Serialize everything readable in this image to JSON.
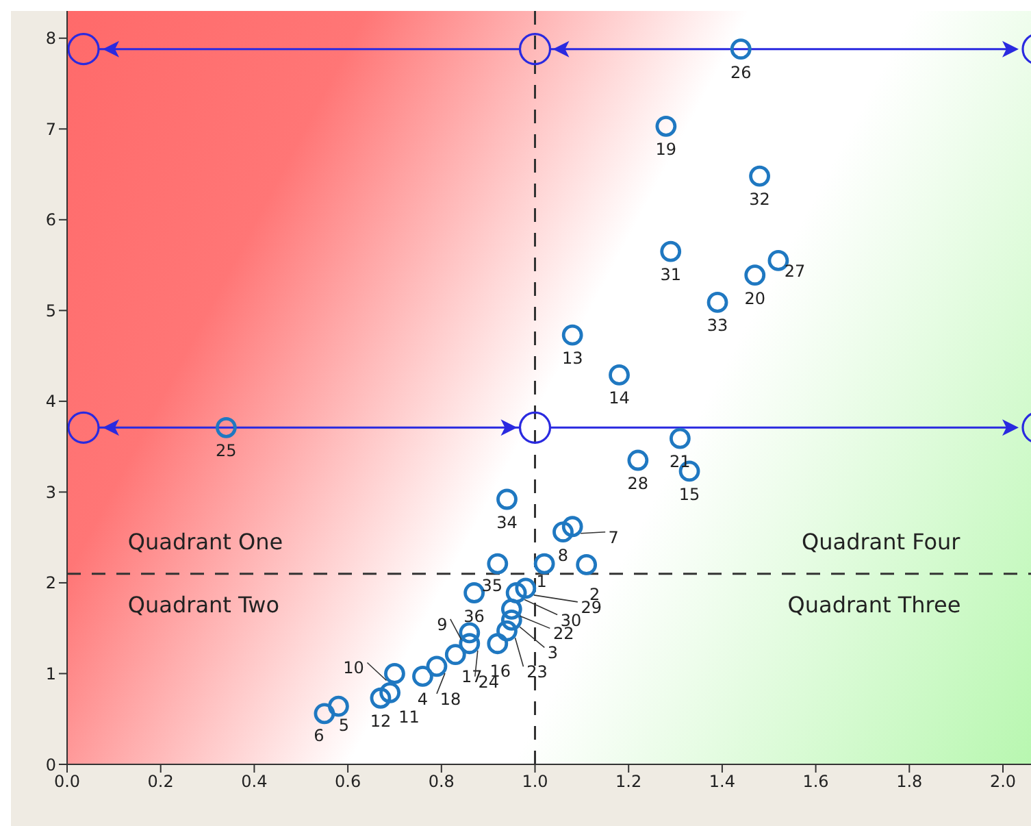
{
  "chart_data": {
    "type": "scatter",
    "x": [
      1.02,
      1.11,
      0.95,
      0.76,
      0.58,
      0.55,
      1.08,
      1.06,
      0.86,
      0.7,
      0.69,
      0.67,
      1.08,
      1.18,
      1.33,
      0.92,
      0.83,
      0.79,
      1.28,
      1.47,
      1.31,
      0.95,
      0.94,
      0.86,
      0.34,
      1.44,
      1.52,
      1.22,
      0.98,
      0.96,
      1.29,
      1.48,
      1.39,
      0.94,
      0.92,
      0.87
    ],
    "values": [
      2.21,
      2.2,
      1.59,
      0.97,
      0.64,
      0.56,
      2.62,
      2.56,
      1.45,
      1.0,
      0.79,
      0.73,
      4.73,
      4.29,
      3.23,
      1.33,
      1.21,
      1.08,
      7.03,
      5.39,
      3.59,
      1.71,
      1.47,
      1.33,
      3.71,
      7.88,
      5.55,
      3.35,
      1.94,
      1.89,
      5.65,
      6.48,
      5.09,
      2.92,
      2.21,
      1.89
    ],
    "color": "#1f78c1",
    "marker": "circle",
    "xlim": [
      0,
      2.06
    ],
    "ylim": [
      0,
      8.3
    ],
    "xticks": [
      {
        "value": 0,
        "label": "0.0"
      },
      {
        "value": 0.2,
        "label": "0.2"
      },
      {
        "value": 0.4,
        "label": "0.4"
      },
      {
        "value": 0.6,
        "label": "0.6"
      },
      {
        "value": 0.8,
        "label": "0.8"
      },
      {
        "value": 1,
        "label": "1.0"
      },
      {
        "value": 1.2,
        "label": "1.2"
      },
      {
        "value": 1.4,
        "label": "1.4"
      },
      {
        "value": 1.6,
        "label": "1.6"
      },
      {
        "value": 1.8,
        "label": "1.8"
      },
      {
        "value": 2,
        "label": "2.0"
      }
    ],
    "yticks": [
      0,
      1,
      2,
      3,
      4,
      5,
      6,
      7,
      8
    ],
    "grid": false,
    "legend": false,
    "ref_lines": [
      {
        "axis": "x",
        "value": 1,
        "color": "#333333",
        "line_style": "dashed"
      },
      {
        "axis": "y",
        "value": 2.1,
        "color": "#333333",
        "line_style": "dashed"
      },
      {
        "axis": "y",
        "value": 7.88,
        "color": "#2a2ae0",
        "line_style": "solid"
      },
      {
        "axis": "y",
        "value": 3.71,
        "color": "#2a2ae0",
        "line_style": "solid"
      }
    ],
    "annotations": [
      {
        "text": "1",
        "x": 1.02,
        "y": 2.21
      },
      {
        "text": "2",
        "x": 1.11,
        "y": 2.2
      },
      {
        "text": "3",
        "x": 0.95,
        "y": 1.59
      },
      {
        "text": "4",
        "x": 0.76,
        "y": 0.97
      },
      {
        "text": "5",
        "x": 0.58,
        "y": 0.64
      },
      {
        "text": "6",
        "x": 0.55,
        "y": 0.56
      },
      {
        "text": "7",
        "x": 1.08,
        "y": 2.62
      },
      {
        "text": "8",
        "x": 1.06,
        "y": 2.56
      },
      {
        "text": "9",
        "x": 0.86,
        "y": 1.45
      },
      {
        "text": "10",
        "x": 0.7,
        "y": 1.0
      },
      {
        "text": "11",
        "x": 0.69,
        "y": 0.79
      },
      {
        "text": "12",
        "x": 0.67,
        "y": 0.73
      },
      {
        "text": "13",
        "x": 1.08,
        "y": 4.73
      },
      {
        "text": "14",
        "x": 1.18,
        "y": 4.29
      },
      {
        "text": "15",
        "x": 1.33,
        "y": 3.23
      },
      {
        "text": "16",
        "x": 0.92,
        "y": 1.33
      },
      {
        "text": "17",
        "x": 0.83,
        "y": 1.21
      },
      {
        "text": "18",
        "x": 0.79,
        "y": 1.08
      },
      {
        "text": "19",
        "x": 1.28,
        "y": 7.03
      },
      {
        "text": "20",
        "x": 1.47,
        "y": 5.39
      },
      {
        "text": "21",
        "x": 1.31,
        "y": 3.59
      },
      {
        "text": "22",
        "x": 0.95,
        "y": 1.71
      },
      {
        "text": "23",
        "x": 0.94,
        "y": 1.47
      },
      {
        "text": "24",
        "x": 0.86,
        "y": 1.33
      },
      {
        "text": "25",
        "x": 0.34,
        "y": 3.71
      },
      {
        "text": "26",
        "x": 1.44,
        "y": 7.88
      },
      {
        "text": "27",
        "x": 1.52,
        "y": 5.55
      },
      {
        "text": "28",
        "x": 1.22,
        "y": 3.35
      },
      {
        "text": "29",
        "x": 0.98,
        "y": 1.94
      },
      {
        "text": "30",
        "x": 0.96,
        "y": 1.89
      },
      {
        "text": "31",
        "x": 1.29,
        "y": 5.65
      },
      {
        "text": "32",
        "x": 1.48,
        "y": 6.48
      },
      {
        "text": "33",
        "x": 1.39,
        "y": 5.09
      },
      {
        "text": "34",
        "x": 0.94,
        "y": 2.92
      },
      {
        "text": "35",
        "x": 0.92,
        "y": 2.21
      },
      {
        "text": "36",
        "x": 0.87,
        "y": 1.89
      },
      "Quadrant One",
      "Quadrant Two",
      "Quadrant Four",
      "Quadrant Three"
    ]
  }
}
